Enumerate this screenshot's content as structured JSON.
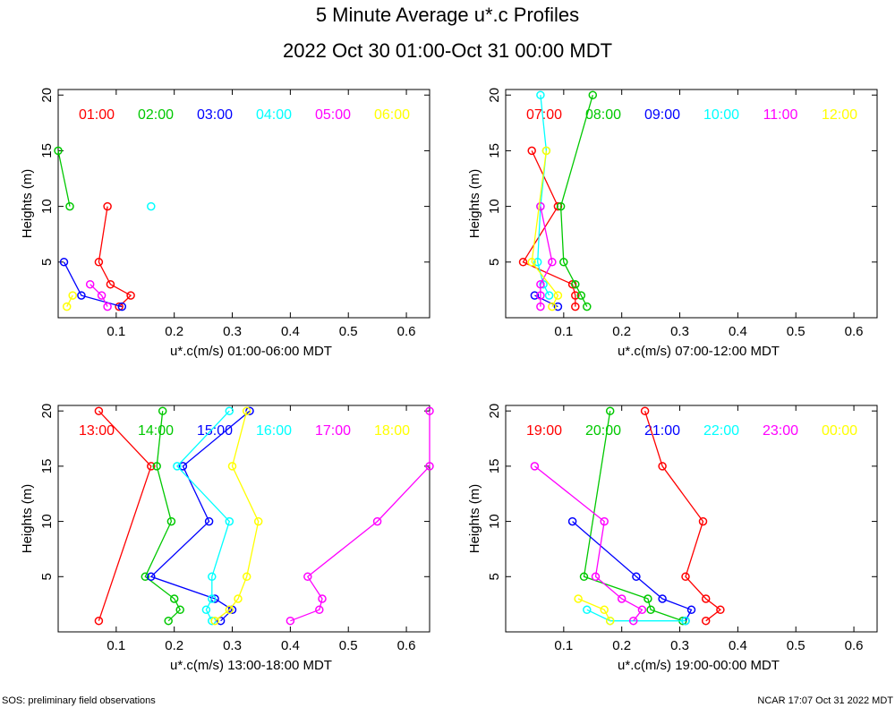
{
  "title": "5 Minute Average u*.c Profiles",
  "subtitle": "2022 Oct 30 01:00-Oct 31 00:00 MDT",
  "footer_left": "SOS: preliminary field observations",
  "footer_right": "NCAR 17:07 Oct 31 2022 MDT",
  "chart_data": [
    {
      "type": "line",
      "xlabel": "u*.c(m/s) 01:00-06:00 MDT",
      "ylabel": "Heights (m)",
      "xlim": [
        0,
        0.64
      ],
      "ylim": [
        0,
        20.5
      ],
      "xticks": [
        "0.1",
        "0.2",
        "0.3",
        "0.4",
        "0.5",
        "0.6"
      ],
      "yticks": [
        "5",
        "10",
        "15",
        "20"
      ],
      "series": [
        {
          "name": "01:00",
          "color": "#ff0000",
          "points": [
            [
              0.105,
              1
            ],
            [
              0.125,
              2
            ],
            [
              0.09,
              3
            ],
            [
              0.07,
              5
            ],
            [
              0.085,
              10
            ]
          ]
        },
        {
          "name": "02:00",
          "color": "#00c800",
          "points": [
            [
              0.02,
              10
            ],
            [
              0.0,
              15
            ]
          ]
        },
        {
          "name": "03:00",
          "color": "#0000ff",
          "points": [
            [
              0.11,
              1
            ],
            [
              0.04,
              2
            ],
            [
              0.01,
              5
            ]
          ]
        },
        {
          "name": "04:00",
          "color": "#00ffff",
          "points": [
            [
              0.16,
              10
            ]
          ]
        },
        {
          "name": "05:00",
          "color": "#ff00ff",
          "points": [
            [
              0.085,
              1
            ],
            [
              0.075,
              2
            ],
            [
              0.055,
              3
            ]
          ]
        },
        {
          "name": "06:00",
          "color": "#ffff00",
          "points": [
            [
              0.015,
              1
            ],
            [
              0.025,
              2
            ]
          ]
        }
      ]
    },
    {
      "type": "line",
      "xlabel": "u*.c(m/s) 07:00-12:00 MDT",
      "ylabel": "Heights (m)",
      "xlim": [
        0,
        0.64
      ],
      "ylim": [
        0,
        20.5
      ],
      "xticks": [
        "0.1",
        "0.2",
        "0.3",
        "0.4",
        "0.5",
        "0.6"
      ],
      "yticks": [
        "5",
        "10",
        "15",
        "20"
      ],
      "series": [
        {
          "name": "07:00",
          "color": "#ff0000",
          "points": [
            [
              0.12,
              1
            ],
            [
              0.12,
              2
            ],
            [
              0.115,
              3
            ],
            [
              0.03,
              5
            ],
            [
              0.09,
              10
            ],
            [
              0.045,
              15
            ]
          ]
        },
        {
          "name": "08:00",
          "color": "#00c800",
          "points": [
            [
              0.14,
              1
            ],
            [
              0.13,
              2
            ],
            [
              0.12,
              3
            ],
            [
              0.1,
              5
            ],
            [
              0.095,
              10
            ],
            [
              0.15,
              20
            ]
          ]
        },
        {
          "name": "09:00",
          "color": "#0000ff",
          "points": [
            [
              0.09,
              1
            ],
            [
              0.05,
              2
            ]
          ]
        },
        {
          "name": "10:00",
          "color": "#00ffff",
          "points": [
            [
              0.075,
              2
            ],
            [
              0.065,
              3
            ],
            [
              0.055,
              5
            ],
            [
              0.06,
              10
            ],
            [
              0.07,
              15
            ],
            [
              0.06,
              20
            ]
          ]
        },
        {
          "name": "11:00",
          "color": "#ff00ff",
          "points": [
            [
              0.06,
              1
            ],
            [
              0.06,
              2
            ],
            [
              0.06,
              3
            ],
            [
              0.08,
              5
            ],
            [
              0.06,
              10
            ]
          ]
        },
        {
          "name": "12:00",
          "color": "#ffff00",
          "points": [
            [
              0.08,
              1
            ],
            [
              0.09,
              2
            ],
            [
              0.045,
              5
            ],
            [
              0.07,
              15
            ]
          ]
        }
      ]
    },
    {
      "type": "line",
      "xlabel": "u*.c(m/s) 13:00-18:00 MDT",
      "ylabel": "Heights (m)",
      "xlim": [
        0,
        0.64
      ],
      "ylim": [
        0,
        20.5
      ],
      "xticks": [
        "0.1",
        "0.2",
        "0.3",
        "0.4",
        "0.5",
        "0.6"
      ],
      "yticks": [
        "5",
        "10",
        "15",
        "20"
      ],
      "series": [
        {
          "name": "13:00",
          "color": "#ff0000",
          "points": [
            [
              0.07,
              1
            ],
            [
              0.16,
              15
            ],
            [
              0.07,
              20
            ]
          ]
        },
        {
          "name": "14:00",
          "color": "#00c800",
          "points": [
            [
              0.19,
              1
            ],
            [
              0.21,
              2
            ],
            [
              0.2,
              3
            ],
            [
              0.15,
              5
            ],
            [
              0.195,
              10
            ],
            [
              0.17,
              15
            ],
            [
              0.18,
              20
            ]
          ]
        },
        {
          "name": "15:00",
          "color": "#0000ff",
          "points": [
            [
              0.28,
              1
            ],
            [
              0.3,
              2
            ],
            [
              0.27,
              3
            ],
            [
              0.16,
              5
            ],
            [
              0.26,
              10
            ],
            [
              0.215,
              15
            ],
            [
              0.33,
              20
            ]
          ]
        },
        {
          "name": "16:00",
          "color": "#00ffff",
          "points": [
            [
              0.265,
              1
            ],
            [
              0.255,
              2
            ],
            [
              0.265,
              3
            ],
            [
              0.265,
              5
            ],
            [
              0.295,
              10
            ],
            [
              0.205,
              15
            ],
            [
              0.295,
              20
            ]
          ]
        },
        {
          "name": "17:00",
          "color": "#ff00ff",
          "points": [
            [
              0.4,
              1
            ],
            [
              0.45,
              2
            ],
            [
              0.455,
              3
            ],
            [
              0.43,
              5
            ],
            [
              0.55,
              10
            ],
            [
              0.64,
              15
            ],
            [
              0.64,
              20
            ]
          ]
        },
        {
          "name": "18:00",
          "color": "#ffff00",
          "points": [
            [
              0.27,
              1
            ],
            [
              0.295,
              2
            ],
            [
              0.31,
              3
            ],
            [
              0.325,
              5
            ],
            [
              0.345,
              10
            ],
            [
              0.3,
              15
            ],
            [
              0.325,
              20
            ]
          ]
        }
      ]
    },
    {
      "type": "line",
      "xlabel": "u*.c(m/s) 19:00-00:00 MDT",
      "ylabel": "Heights (m)",
      "xlim": [
        0,
        0.64
      ],
      "ylim": [
        0,
        20.5
      ],
      "xticks": [
        "0.1",
        "0.2",
        "0.3",
        "0.4",
        "0.5",
        "0.6"
      ],
      "yticks": [
        "5",
        "10",
        "15",
        "20"
      ],
      "series": [
        {
          "name": "19:00",
          "color": "#ff0000",
          "points": [
            [
              0.345,
              1
            ],
            [
              0.37,
              2
            ],
            [
              0.345,
              3
            ],
            [
              0.31,
              5
            ],
            [
              0.34,
              10
            ],
            [
              0.27,
              15
            ],
            [
              0.24,
              20
            ]
          ]
        },
        {
          "name": "20:00",
          "color": "#00c800",
          "points": [
            [
              0.305,
              1
            ],
            [
              0.25,
              2
            ],
            [
              0.245,
              3
            ],
            [
              0.135,
              5
            ],
            [
              0.18,
              20
            ]
          ]
        },
        {
          "name": "21:00",
          "color": "#0000ff",
          "points": [
            [
              0.31,
              1
            ],
            [
              0.32,
              2
            ],
            [
              0.27,
              3
            ],
            [
              0.225,
              5
            ],
            [
              0.115,
              10
            ]
          ]
        },
        {
          "name": "22:00",
          "color": "#00ffff",
          "points": [
            [
              0.31,
              1
            ],
            [
              0.18,
              1
            ],
            [
              0.14,
              2
            ]
          ]
        },
        {
          "name": "23:00",
          "color": "#ff00ff",
          "points": [
            [
              0.22,
              1
            ],
            [
              0.235,
              2
            ],
            [
              0.2,
              3
            ],
            [
              0.155,
              5
            ],
            [
              0.17,
              10
            ],
            [
              0.05,
              15
            ]
          ]
        },
        {
          "name": "00:00",
          "color": "#ffff00",
          "points": [
            [
              0.18,
              1
            ],
            [
              0.17,
              2
            ],
            [
              0.125,
              3
            ]
          ]
        }
      ]
    }
  ]
}
